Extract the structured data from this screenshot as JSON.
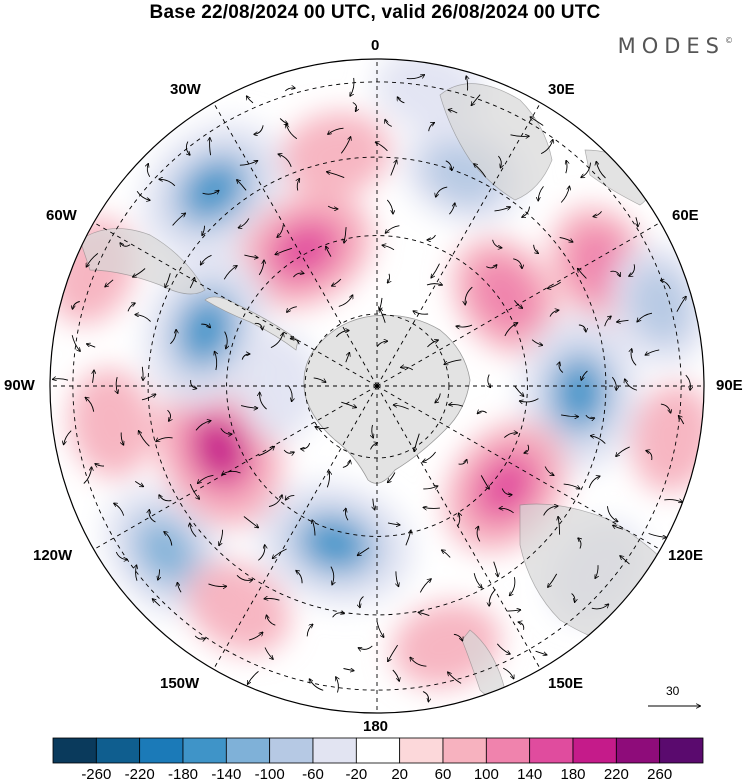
{
  "header": {
    "title": "Base 22/08/2024 00 UTC, valid 26/08/2024 00 UTC",
    "brand": "MODES"
  },
  "map": {
    "projection": "south-polar-stereographic",
    "longitude_labels": [
      {
        "id": "lon-0",
        "text": "0"
      },
      {
        "id": "lon-30e",
        "text": "30E"
      },
      {
        "id": "lon-60e",
        "text": "60E"
      },
      {
        "id": "lon-90e",
        "text": "90E"
      },
      {
        "id": "lon-120e",
        "text": "120E"
      },
      {
        "id": "lon-150e",
        "text": "150E"
      },
      {
        "id": "lon-180",
        "text": "180"
      },
      {
        "id": "lon-150w",
        "text": "150W"
      },
      {
        "id": "lon-120w",
        "text": "120W"
      },
      {
        "id": "lon-90w",
        "text": "90W"
      },
      {
        "id": "lon-60w",
        "text": "60W"
      },
      {
        "id": "lon-30w",
        "text": "30W"
      }
    ],
    "anomaly_centers": [
      {
        "sign": "neg",
        "level": -180,
        "lon": -40,
        "colat": 0.78
      },
      {
        "sign": "pos",
        "level": 140,
        "lon": -28,
        "colat": 0.47
      },
      {
        "sign": "pos",
        "level": 60,
        "lon": -10,
        "colat": 0.72
      },
      {
        "sign": "neg",
        "level": -100,
        "lon": 22,
        "colat": 0.7
      },
      {
        "sign": "neg",
        "level": -60,
        "lon": 10,
        "colat": 0.92
      },
      {
        "sign": "pos",
        "level": 100,
        "lon": 55,
        "colat": 0.48
      },
      {
        "sign": "pos",
        "level": 100,
        "lon": 62,
        "colat": 0.78
      },
      {
        "sign": "neg",
        "level": -180,
        "lon": 92,
        "colat": 0.62
      },
      {
        "sign": "neg",
        "level": -100,
        "lon": 74,
        "colat": 0.9
      },
      {
        "sign": "pos",
        "level": 60,
        "lon": 100,
        "colat": 0.92
      },
      {
        "sign": "pos",
        "level": 140,
        "lon": 128,
        "colat": 0.5
      },
      {
        "sign": "neg",
        "level": -60,
        "lon": 130,
        "colat": 0.88
      },
      {
        "sign": "pos",
        "level": 60,
        "lon": 165,
        "colat": 0.82
      },
      {
        "sign": "neg",
        "level": -180,
        "lon": -165,
        "colat": 0.5
      },
      {
        "sign": "neg",
        "level": -140,
        "lon": -128,
        "colat": 0.82
      },
      {
        "sign": "pos",
        "level": 60,
        "lon": -148,
        "colat": 0.8
      },
      {
        "sign": "pos",
        "level": 180,
        "lon": -112,
        "colat": 0.52
      },
      {
        "sign": "pos",
        "level": 60,
        "lon": -98,
        "colat": 0.82
      },
      {
        "sign": "neg",
        "level": -180,
        "lon": -72,
        "colat": 0.55
      },
      {
        "sign": "pos",
        "level": 60,
        "lon": -68,
        "colat": 0.94
      },
      {
        "sign": "neg",
        "level": -60,
        "lon": -90,
        "colat": 0.3
      }
    ],
    "wind_reference": {
      "value": "30"
    }
  },
  "colorbar": {
    "ticks": [
      "-260",
      "-220",
      "-180",
      "-140",
      "-100",
      "-60",
      "-20",
      "20",
      "60",
      "100",
      "140",
      "180",
      "220",
      "260"
    ],
    "colors": [
      "#0a3a5c",
      "#0f5e8f",
      "#1b7ab8",
      "#3f94c8",
      "#7fb1d8",
      "#b6c9e4",
      "#e2e4f2",
      "#ffffff",
      "#fcd8da",
      "#f7b2bf",
      "#f083ad",
      "#e04c9e",
      "#c51b8a",
      "#8e0c7a",
      "#5a0a6e"
    ]
  }
}
